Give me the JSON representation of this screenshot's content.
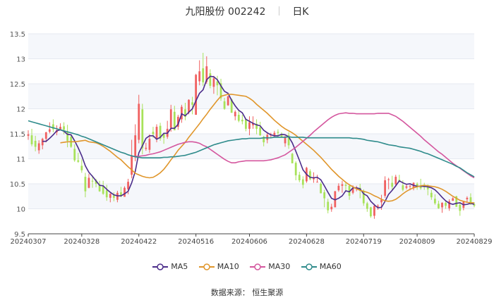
{
  "header": {
    "stock_name": "九阳股份",
    "stock_code": "002242",
    "period": "日K"
  },
  "footer": {
    "source": "数据来源：  恒生聚源"
  },
  "chart_data": {
    "type": "candlestick",
    "y_ticks": [
      "13.5",
      "13",
      "12.5",
      "12",
      "11.5",
      "11",
      "10.5",
      "10",
      "9.5"
    ],
    "y_range": [
      9.5,
      13.5
    ],
    "x_tick_labels": [
      "20240307",
      "20240328",
      "20240422",
      "20240516",
      "20240606",
      "20240628",
      "20240719",
      "20240809",
      "20240829"
    ],
    "x_tick_index": [
      0,
      15,
      31,
      47,
      62,
      78,
      94,
      109,
      125
    ],
    "candles": [
      [
        11.46,
        11.49,
        11.57,
        11.38
      ],
      [
        11.47,
        11.29,
        11.6,
        11.25
      ],
      [
        11.36,
        11.24,
        11.46,
        11.15
      ],
      [
        11.17,
        11.31,
        11.37,
        11.1
      ],
      [
        11.27,
        11.4,
        11.42,
        11.19
      ],
      [
        11.4,
        11.53,
        11.54,
        11.33
      ],
      [
        11.54,
        11.59,
        11.73,
        11.51
      ],
      [
        11.69,
        11.59,
        11.79,
        11.53
      ],
      [
        11.53,
        11.57,
        11.67,
        11.47
      ],
      [
        11.57,
        11.64,
        11.71,
        11.57
      ],
      [
        11.65,
        11.58,
        11.73,
        11.49
      ],
      [
        11.53,
        11.36,
        11.68,
        11.23
      ],
      [
        11.44,
        11.24,
        11.48,
        11.22
      ],
      [
        11.2,
        10.97,
        11.29,
        10.94
      ],
      [
        10.97,
        10.94,
        11.12,
        10.92
      ],
      [
        10.86,
        10.77,
        10.99,
        10.72
      ],
      [
        10.64,
        10.35,
        10.72,
        10.23
      ],
      [
        10.42,
        10.62,
        10.7,
        10.41
      ],
      [
        10.56,
        10.55,
        10.67,
        10.42
      ],
      [
        10.57,
        10.5,
        10.6,
        10.43
      ],
      [
        10.48,
        10.35,
        10.56,
        10.34
      ],
      [
        10.45,
        10.3,
        10.56,
        10.28
      ],
      [
        10.37,
        10.23,
        10.48,
        10.16
      ],
      [
        10.22,
        10.3,
        10.31,
        10.13
      ],
      [
        10.27,
        10.22,
        10.33,
        10.15
      ],
      [
        10.18,
        10.32,
        10.36,
        10.13
      ],
      [
        10.33,
        10.25,
        10.44,
        10.23
      ],
      [
        10.24,
        10.42,
        10.45,
        10.24
      ],
      [
        10.39,
        10.54,
        10.6,
        10.29
      ],
      [
        10.68,
        11.07,
        11.38,
        10.61
      ],
      [
        11.03,
        11.47,
        11.69,
        10.95
      ],
      [
        11.38,
        12.1,
        12.28,
        11.31
      ],
      [
        11.99,
        11.21,
        12.1,
        11.09
      ],
      [
        11.2,
        11.22,
        11.32,
        11.16
      ],
      [
        11.18,
        11.4,
        11.49,
        11.12
      ],
      [
        11.54,
        11.49,
        11.64,
        11.42
      ],
      [
        11.4,
        11.64,
        11.69,
        11.33
      ],
      [
        11.66,
        11.4,
        11.72,
        11.36
      ],
      [
        11.5,
        11.42,
        11.5,
        11.3
      ],
      [
        11.44,
        11.6,
        11.76,
        11.4
      ],
      [
        11.62,
        11.99,
        12.08,
        11.54
      ],
      [
        11.94,
        11.57,
        12.06,
        11.57
      ],
      [
        11.64,
        11.84,
        11.88,
        11.58
      ],
      [
        11.79,
        12.04,
        12.08,
        11.72
      ],
      [
        11.99,
        11.84,
        12.12,
        11.77
      ],
      [
        11.93,
        12.18,
        12.19,
        11.89
      ],
      [
        12.13,
        12.08,
        12.24,
        11.89
      ],
      [
        11.88,
        12.68,
        12.7,
        11.88
      ],
      [
        12.55,
        12.75,
        12.97,
        12.47
      ],
      [
        12.81,
        12.53,
        13.12,
        12.46
      ],
      [
        12.54,
        12.85,
        13.05,
        12.5
      ],
      [
        12.71,
        12.46,
        12.79,
        12.41
      ],
      [
        12.44,
        12.61,
        12.66,
        12.3
      ],
      [
        12.55,
        12.47,
        12.66,
        12.27
      ],
      [
        12.51,
        12.21,
        12.6,
        12.16
      ],
      [
        12.15,
        12.0,
        12.22,
        11.98
      ],
      [
        12.07,
        12.25,
        12.26,
        12.06
      ],
      [
        12.19,
        11.92,
        12.21,
        11.92
      ],
      [
        11.85,
        11.94,
        11.97,
        11.77
      ],
      [
        11.88,
        11.76,
        11.98,
        11.73
      ],
      [
        11.78,
        11.75,
        11.88,
        11.69
      ],
      [
        11.79,
        11.6,
        11.8,
        11.55
      ],
      [
        11.6,
        11.73,
        11.85,
        11.47
      ],
      [
        11.67,
        11.71,
        11.85,
        11.6
      ],
      [
        11.7,
        11.6,
        11.79,
        11.49
      ],
      [
        11.63,
        11.47,
        11.74,
        11.46
      ],
      [
        11.44,
        11.33,
        11.46,
        11.25
      ],
      [
        11.38,
        11.48,
        11.52,
        11.31
      ],
      [
        11.47,
        11.48,
        11.52,
        11.43
      ],
      [
        11.45,
        11.52,
        11.56,
        11.43
      ],
      [
        11.54,
        11.52,
        11.59,
        11.43
      ],
      [
        11.48,
        11.43,
        11.53,
        11.42
      ],
      [
        11.31,
        11.45,
        11.45,
        11.24
      ],
      [
        11.47,
        11.27,
        11.53,
        11.2
      ],
      [
        11.1,
        10.91,
        11.12,
        10.91
      ],
      [
        10.92,
        10.67,
        10.95,
        10.57
      ],
      [
        10.68,
        10.57,
        10.74,
        10.53
      ],
      [
        10.59,
        10.48,
        10.65,
        10.41
      ],
      [
        10.55,
        10.82,
        10.84,
        10.52
      ],
      [
        10.75,
        10.59,
        10.79,
        10.57
      ],
      [
        10.59,
        10.63,
        10.73,
        10.52
      ],
      [
        10.54,
        10.54,
        10.68,
        10.53
      ],
      [
        10.5,
        10.31,
        10.53,
        10.31
      ],
      [
        10.33,
        10.21,
        10.38,
        10.03
      ],
      [
        10.14,
        9.97,
        10.2,
        9.91
      ],
      [
        9.99,
        10.04,
        10.1,
        9.94
      ],
      [
        10.03,
        10.35,
        10.36,
        10.03
      ],
      [
        10.37,
        10.46,
        10.51,
        10.34
      ],
      [
        10.46,
        10.49,
        10.56,
        10.32
      ],
      [
        10.48,
        10.46,
        10.53,
        10.34
      ],
      [
        10.46,
        10.26,
        10.47,
        10.18
      ],
      [
        10.32,
        10.42,
        10.47,
        10.29
      ],
      [
        10.41,
        10.41,
        10.46,
        10.35
      ],
      [
        10.42,
        10.36,
        10.5,
        10.21
      ],
      [
        10.35,
        10.11,
        10.39,
        10.06
      ],
      [
        10.11,
        10.0,
        10.14,
        9.94
      ],
      [
        10.03,
        9.85,
        10.04,
        9.82
      ],
      [
        9.86,
        10.06,
        10.1,
        9.8
      ],
      [
        10.04,
        10.06,
        10.09,
        9.98
      ],
      [
        10.13,
        10.18,
        10.28,
        9.98
      ],
      [
        10.26,
        10.57,
        10.65,
        10.22
      ],
      [
        10.59,
        10.59,
        10.62,
        10.39
      ],
      [
        10.52,
        10.44,
        10.66,
        10.36
      ],
      [
        10.49,
        10.64,
        10.68,
        10.46
      ],
      [
        10.58,
        10.56,
        10.68,
        10.53
      ],
      [
        10.47,
        10.38,
        10.57,
        10.35
      ],
      [
        10.42,
        10.45,
        10.5,
        10.39
      ],
      [
        10.45,
        10.46,
        10.48,
        10.37
      ],
      [
        10.42,
        10.52,
        10.53,
        10.37
      ],
      [
        10.5,
        10.43,
        10.53,
        10.38
      ],
      [
        10.45,
        10.41,
        10.6,
        10.38
      ],
      [
        10.47,
        10.43,
        10.52,
        10.38
      ],
      [
        10.45,
        10.39,
        10.49,
        10.27
      ],
      [
        10.32,
        10.23,
        10.38,
        10.18
      ],
      [
        10.2,
        10.11,
        10.29,
        10.08
      ],
      [
        10.1,
        10.01,
        10.16,
        10.0
      ],
      [
        10.03,
        10.12,
        10.13,
        9.92
      ],
      [
        10.12,
        10.06,
        10.15,
        10.0
      ],
      [
        10.01,
        10.15,
        10.19,
        9.96
      ],
      [
        10.16,
        10.21,
        10.23,
        10.16
      ],
      [
        10.25,
        10.04,
        10.26,
        10.04
      ],
      [
        10.08,
        9.96,
        10.11,
        9.86
      ],
      [
        10.02,
        10.14,
        10.15,
        9.97
      ],
      [
        10.19,
        10.22,
        10.25,
        10.13
      ],
      [
        10.23,
        10.09,
        10.31,
        10.08
      ],
      [
        10.09,
        10.06,
        10.13,
        10.03
      ]
    ],
    "series": [
      {
        "name": "MA5",
        "color": "#4b2c8a",
        "values": [
          null,
          null,
          null,
          null,
          11.35,
          11.35,
          11.41,
          11.48,
          11.56,
          11.58,
          11.55,
          11.49,
          11.48,
          11.36,
          11.22,
          11.06,
          10.86,
          10.73,
          10.65,
          10.56,
          10.47,
          10.46,
          10.39,
          10.33,
          10.28,
          10.26,
          10.26,
          10.3,
          10.35,
          10.52,
          10.75,
          11.12,
          11.26,
          11.41,
          11.46,
          11.46,
          11.39,
          11.43,
          11.51,
          11.51,
          11.61,
          11.61,
          11.69,
          11.9,
          11.86,
          11.93,
          12.0,
          12.16,
          12.31,
          12.38,
          12.58,
          12.65,
          12.64,
          12.58,
          12.46,
          12.35,
          12.31,
          12.17,
          12.06,
          11.97,
          11.92,
          11.79,
          11.75,
          11.71,
          11.68,
          11.66,
          11.57,
          11.52,
          11.48,
          11.46,
          11.46,
          11.49,
          11.48,
          11.44,
          11.32,
          11.15,
          10.97,
          10.78,
          10.69,
          10.63,
          10.62,
          10.63,
          10.58,
          10.46,
          10.33,
          10.21,
          10.18,
          10.21,
          10.26,
          10.36,
          10.34,
          10.42,
          10.42,
          10.4,
          10.3,
          10.26,
          10.15,
          10.08,
          10.02,
          10.03,
          10.15,
          10.29,
          10.37,
          10.46,
          10.56,
          10.52,
          10.49,
          10.5,
          10.47,
          10.45,
          10.45,
          10.45,
          10.44,
          10.42,
          10.38,
          10.31,
          10.23,
          10.16,
          10.11,
          10.09,
          10.11,
          10.12,
          10.08,
          10.09,
          10.11,
          10.09
        ]
      },
      {
        "name": "MA10",
        "color": "#e0962b",
        "values": [
          null,
          null,
          null,
          null,
          null,
          null,
          null,
          null,
          null,
          11.32,
          11.33,
          11.34,
          11.34,
          11.34,
          11.35,
          11.36,
          11.37,
          11.34,
          11.33,
          11.32,
          11.29,
          11.25,
          11.2,
          11.15,
          11.09,
          11.03,
          10.98,
          10.91,
          10.84,
          10.78,
          10.71,
          10.68,
          10.65,
          10.63,
          10.62,
          10.63,
          10.67,
          10.72,
          10.79,
          10.88,
          10.98,
          11.07,
          11.17,
          11.25,
          11.33,
          11.43,
          11.52,
          11.61,
          11.7,
          11.8,
          11.89,
          11.99,
          12.08,
          12.17,
          12.25,
          12.27,
          12.29,
          12.29,
          12.28,
          12.27,
          12.26,
          12.25,
          12.21,
          12.16,
          12.09,
          12.03,
          11.97,
          11.91,
          11.84,
          11.77,
          11.71,
          11.65,
          11.6,
          11.56,
          11.52,
          11.47,
          11.41,
          11.35,
          11.29,
          11.23,
          11.17,
          11.1,
          11.03,
          10.95,
          10.87,
          10.79,
          10.72,
          10.65,
          10.59,
          10.53,
          10.48,
          10.44,
          10.4,
          10.37,
          10.35,
          10.33,
          10.3,
          10.26,
          10.23,
          10.19,
          10.16,
          10.15,
          10.16,
          10.19,
          10.24,
          10.3,
          10.35,
          10.39,
          10.42,
          10.44,
          10.46,
          10.47,
          10.46,
          10.45,
          10.44,
          10.42,
          10.39,
          10.35,
          10.3,
          10.25,
          10.21,
          10.17,
          10.15,
          10.13,
          10.12,
          10.12
        ]
      },
      {
        "name": "MA30",
        "color": "#d4569e",
        "values": [
          null,
          null,
          null,
          null,
          null,
          null,
          null,
          null,
          null,
          null,
          null,
          null,
          null,
          null,
          null,
          null,
          null,
          null,
          null,
          null,
          null,
          null,
          null,
          null,
          null,
          null,
          null,
          null,
          null,
          11.05,
          11.05,
          11.05,
          11.06,
          11.07,
          11.09,
          11.1,
          11.12,
          11.14,
          11.17,
          11.2,
          11.23,
          11.26,
          11.29,
          11.31,
          11.33,
          11.34,
          11.34,
          11.33,
          11.31,
          11.27,
          11.24,
          11.19,
          11.14,
          11.09,
          11.04,
          10.99,
          10.95,
          10.92,
          10.92,
          10.94,
          10.95,
          10.96,
          10.96,
          10.96,
          10.96,
          10.96,
          10.96,
          10.97,
          10.98,
          11.0,
          11.02,
          11.05,
          11.08,
          11.13,
          11.18,
          11.23,
          11.29,
          11.35,
          11.41,
          11.47,
          11.54,
          11.6,
          11.66,
          11.72,
          11.78,
          11.83,
          11.87,
          11.9,
          11.91,
          11.92,
          11.91,
          11.91,
          11.9,
          11.9,
          11.9,
          11.9,
          11.9,
          11.9,
          11.91,
          11.91,
          11.91,
          11.91,
          11.88,
          11.85,
          11.8,
          11.75,
          11.69,
          11.63,
          11.57,
          11.51,
          11.45,
          11.38,
          11.32,
          11.26,
          11.2,
          11.14,
          11.09,
          11.03,
          10.97,
          10.91,
          10.86,
          10.81,
          10.76,
          10.71,
          10.66,
          10.62
        ]
      },
      {
        "name": "MA60",
        "color": "#2e8b8b",
        "values": [
          11.76,
          11.74,
          11.72,
          11.7,
          11.68,
          11.66,
          11.64,
          11.62,
          11.6,
          11.58,
          11.56,
          11.54,
          11.52,
          11.5,
          11.48,
          11.45,
          11.43,
          11.4,
          11.37,
          11.34,
          11.31,
          11.28,
          11.25,
          11.22,
          11.19,
          11.16,
          11.13,
          11.11,
          11.08,
          11.06,
          11.04,
          11.03,
          11.02,
          11.02,
          11.02,
          11.02,
          11.02,
          11.02,
          11.03,
          11.03,
          11.04,
          11.04,
          11.05,
          11.06,
          11.07,
          11.09,
          11.11,
          11.13,
          11.16,
          11.19,
          11.22,
          11.25,
          11.28,
          11.3,
          11.32,
          11.34,
          11.36,
          11.37,
          11.38,
          11.39,
          11.4,
          11.4,
          11.41,
          11.41,
          11.41,
          11.41,
          11.42,
          11.42,
          11.42,
          11.43,
          11.43,
          11.43,
          11.43,
          11.44,
          11.43,
          11.43,
          11.43,
          11.43,
          11.42,
          11.42,
          11.42,
          11.42,
          11.42,
          11.42,
          11.42,
          11.42,
          11.42,
          11.42,
          11.42,
          11.42,
          11.42,
          11.41,
          11.41,
          11.4,
          11.39,
          11.37,
          11.36,
          11.35,
          11.34,
          11.32,
          11.3,
          11.28,
          11.27,
          11.26,
          11.24,
          11.23,
          11.22,
          11.21,
          11.19,
          11.17,
          11.15,
          11.12,
          11.1,
          11.07,
          11.04,
          11.01,
          10.98,
          10.95,
          10.92,
          10.89,
          10.85,
          10.82,
          10.77,
          10.72,
          10.68,
          10.64
        ]
      }
    ],
    "colors": {
      "up": "#f06060",
      "down": "#a8e25a"
    }
  }
}
